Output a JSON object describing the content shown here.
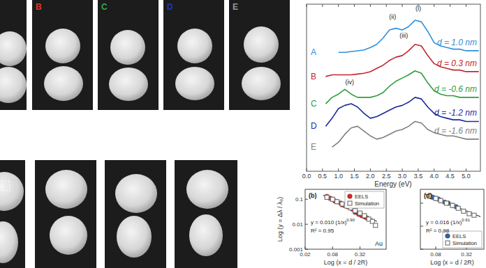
{
  "micrographs": {
    "top_row_labels": [
      {
        "text": "B",
        "color": "#e0352b"
      },
      {
        "text": "C",
        "color": "#2fa84f"
      },
      {
        "text": "D",
        "color": "#2036c0"
      },
      {
        "text": "E",
        "color": "#9a9a9a"
      }
    ]
  },
  "chart_data": [
    {
      "type": "line",
      "xlabel": "Energy (eV)",
      "x": [
        0.6,
        0.8,
        1.0,
        1.2,
        1.4,
        1.6,
        1.8,
        2.0,
        2.2,
        2.4,
        2.6,
        2.8,
        3.0,
        3.2,
        3.4,
        3.6,
        3.8,
        4.0,
        4.2,
        4.4,
        4.6,
        4.8,
        5.0,
        5.2,
        5.4
      ],
      "xlim": [
        0,
        5.45
      ],
      "xticks": [
        {
          "value": 0,
          "label": "0.0"
        },
        0.5,
        {
          "value": 1,
          "label": "1.0"
        },
        1.5,
        {
          "value": 2,
          "label": "2.0"
        },
        2.5,
        {
          "value": 3,
          "label": "3.0"
        },
        3.5,
        {
          "value": 4,
          "label": "4.0"
        },
        4.5,
        {
          "value": 5,
          "label": "5.0"
        }
      ],
      "ylim": [
        0,
        10.4
      ],
      "tick_labels": "x",
      "series": [
        {
          "name": "A",
          "label": "d = 1.0 nm",
          "color": "#2f8fdc",
          "values": [
            null,
            null,
            7.4,
            7.4,
            7.45,
            7.5,
            7.55,
            7.7,
            7.9,
            8.3,
            8.8,
            8.9,
            8.8,
            9.0,
            9.4,
            9.3,
            8.7,
            8.0,
            7.8,
            7.7,
            7.6,
            7.6,
            7.5,
            7.5,
            7.5
          ]
        },
        {
          "name": "B",
          "label": "d = 0.3 nm",
          "color": "#c1272d",
          "values": [
            5.9,
            6.0,
            6.0,
            6.0,
            6.0,
            6.05,
            6.1,
            6.2,
            6.4,
            6.6,
            6.9,
            7.1,
            7.2,
            7.5,
            7.9,
            7.8,
            7.2,
            6.7,
            6.5,
            6.4,
            6.3,
            6.3,
            6.2,
            6.2,
            6.2
          ]
        },
        {
          "name": "C",
          "label": "d = -0.6 nm",
          "color": "#2e9c3e",
          "values": [
            4.2,
            4.6,
            4.8,
            5.1,
            4.8,
            4.6,
            4.6,
            4.6,
            4.7,
            4.9,
            5.3,
            5.6,
            5.8,
            6.0,
            6.25,
            6.1,
            5.5,
            5.0,
            4.8,
            4.7,
            4.7,
            4.6,
            4.6,
            4.6,
            4.6
          ]
        },
        {
          "name": "D",
          "label": "d = -1.2 nm",
          "color": "#1b2a9a",
          "values": [
            2.8,
            3.3,
            3.9,
            4.1,
            4.2,
            4.0,
            3.6,
            3.3,
            3.4,
            3.6,
            3.8,
            4.0,
            4.1,
            4.3,
            4.6,
            4.5,
            4.0,
            3.6,
            3.4,
            3.3,
            3.2,
            3.2,
            3.1,
            3.1,
            3.1
          ]
        },
        {
          "name": "E",
          "label": "d = -1.6 nm",
          "color": "#7f7f7f",
          "values": [
            null,
            1.5,
            1.8,
            2.3,
            2.7,
            2.8,
            2.5,
            2.2,
            2.0,
            2.1,
            2.3,
            2.5,
            2.6,
            2.8,
            3.1,
            3.0,
            2.6,
            2.4,
            2.3,
            2.2,
            2.2,
            2.1,
            2.0,
            2.0,
            2.0
          ]
        }
      ],
      "annotations": [
        {
          "text": "(i)",
          "x": 3.5,
          "y": 10.0
        },
        {
          "text": "(ii)",
          "x": 2.7,
          "y": 9.5
        },
        {
          "text": "(iii)",
          "x": 3.05,
          "y": 8.3
        },
        {
          "text": "(iv)",
          "x": 1.35,
          "y": 5.4
        }
      ]
    },
    {
      "type": "scatter",
      "log": true,
      "panel_label": "(b)",
      "xlabel": "Log (x = d / 2R)",
      "ylabel": "Log (y = Δλ / λ₀)",
      "xlim": [
        0.02,
        1.2
      ],
      "xticks": [
        0.02,
        0.08,
        0.32
      ],
      "ylim": [
        0.001,
        0.25
      ],
      "yticks": [
        0.001,
        0.01,
        0.1
      ],
      "legend": "top-right",
      "series": [
        {
          "name": "EELS",
          "color": "#e8201c",
          "marker": "circle",
          "x": [
            0.06,
            0.07,
            0.08,
            0.09,
            0.1,
            0.12,
            0.13,
            0.15,
            0.17,
            0.2,
            0.22,
            0.25,
            0.3,
            0.35,
            0.4,
            0.45
          ],
          "values": [
            0.13,
            0.11,
            0.1,
            0.085,
            0.08,
            0.07,
            0.06,
            0.055,
            0.05,
            0.045,
            0.04,
            0.03,
            0.025,
            0.022,
            0.02,
            0.018
          ]
        },
        {
          "name": "Simulation",
          "color": "#6e6e6e",
          "marker": "square",
          "x": [
            0.06,
            0.08,
            0.1,
            0.13,
            0.16,
            0.2,
            0.25,
            0.32,
            0.4,
            0.5,
            0.6,
            0.7
          ],
          "values": [
            0.12,
            0.1,
            0.08,
            0.065,
            0.055,
            0.045,
            0.035,
            0.028,
            0.022,
            0.016,
            0.013,
            0.009
          ]
        }
      ],
      "fit": {
        "x": [
          0.05,
          0.75
        ],
        "values": [
          0.148,
          0.013
        ],
        "color": "#333333"
      },
      "equation": "y = 0.010 (1/x)",
      "exponent": "0.90",
      "r2": "R² = 0.95",
      "material": "Au"
    },
    {
      "type": "scatter",
      "log": true,
      "panel_label": "(d)",
      "xlabel": "Log (x = d / 2R)",
      "xlim": [
        0.04,
        0.7
      ],
      "xticks": [
        0.08,
        0.32
      ],
      "ylim": [
        0.001,
        0.4
      ],
      "yticks": [
        0.001,
        0.01,
        0.1
      ],
      "tick_labels": "x",
      "legend": "bottom-right",
      "series": [
        {
          "name": "EELS",
          "color": "#2a62b8",
          "marker": "circle",
          "x": [
            0.06,
            0.065,
            0.07,
            0.08,
            0.09,
            0.1,
            0.12,
            0.14,
            0.17,
            0.2
          ],
          "values": [
            0.2,
            0.19,
            0.18,
            0.16,
            0.15,
            0.13,
            0.11,
            0.1,
            0.08,
            0.07
          ]
        },
        {
          "name": "Simulation",
          "color": "#6e6e6e",
          "marker": "square",
          "x": [
            0.06,
            0.08,
            0.1,
            0.13,
            0.17,
            0.22,
            0.28,
            0.36,
            0.45
          ],
          "values": [
            0.2,
            0.16,
            0.13,
            0.1,
            0.08,
            0.06,
            0.045,
            0.035,
            0.03
          ]
        }
      ],
      "fit": {
        "x": [
          0.05,
          0.6
        ],
        "values": [
          0.245,
          0.026
        ],
        "color": "#333333"
      },
      "equation": "y = 0.016 (1/x)",
      "exponent": "0.91",
      "r2": "R² = 0.98"
    }
  ]
}
